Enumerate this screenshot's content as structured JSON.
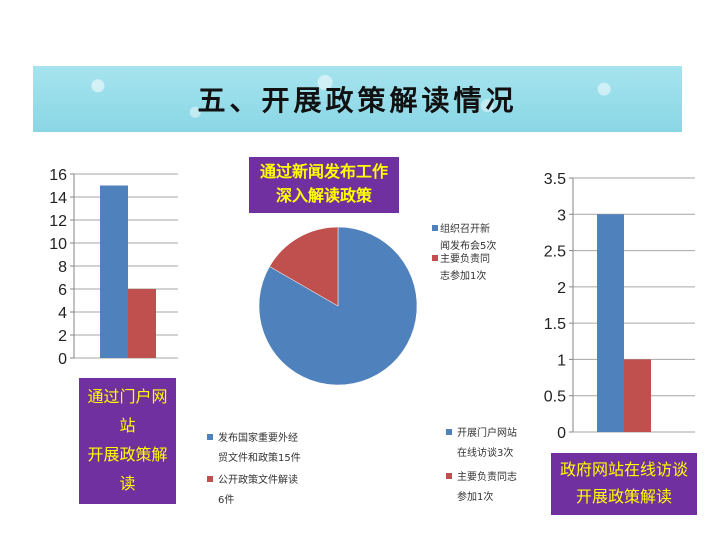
{
  "page": {
    "title": "五、开展政策解读情况"
  },
  "chart_data": [
    {
      "type": "bar",
      "caption_lines": [
        "通过门户网",
        "站",
        "开展政策解",
        "读"
      ],
      "ylim": [
        0,
        16
      ],
      "yticks": [
        "0",
        "2",
        "4",
        "6",
        "8",
        "10",
        "12",
        "14",
        "16"
      ],
      "series": [
        {
          "name": "发布国家重要外经贸文件和政策15件",
          "legend_lines": [
            "发布国家重要外经",
            "贸文件和政策15件"
          ],
          "color": "#4f81bd",
          "values": [
            15
          ]
        },
        {
          "name": "公开政策文件解读6件",
          "legend_lines": [
            "公开政策文件解读",
            "6件"
          ],
          "color": "#c0504d",
          "values": [
            6
          ]
        }
      ]
    },
    {
      "type": "pie",
      "caption_lines": [
        "通过新闻发布工作",
        "深入解读政策"
      ],
      "slices": [
        {
          "name": "组织召开新闻发布会5次",
          "legend_lines": [
            "组织召开新",
            "闻发布会5次"
          ],
          "value": 5,
          "color": "#4f81bd"
        },
        {
          "name": "主要负责同志参加1次",
          "legend_lines": [
            "主要负责同",
            "志参加1次"
          ],
          "value": 1,
          "color": "#c0504d"
        }
      ]
    },
    {
      "type": "bar",
      "caption_lines": [
        "政府网站在线访谈",
        "开展政策解读"
      ],
      "ylim": [
        0,
        3.5
      ],
      "yticks": [
        "0",
        "0.5",
        "1",
        "1.5",
        "2",
        "2.5",
        "3",
        "3.5"
      ],
      "series": [
        {
          "name": "开展门户网站在线访谈3次",
          "legend_lines": [
            "开展门户网站",
            "在线访谈3次"
          ],
          "color": "#4f81bd",
          "values": [
            3
          ]
        },
        {
          "name": "主要负责同志参加1次",
          "legend_lines": [
            "主要负责同志",
            "参加1次"
          ],
          "color": "#c0504d",
          "values": [
            1
          ]
        }
      ]
    }
  ]
}
